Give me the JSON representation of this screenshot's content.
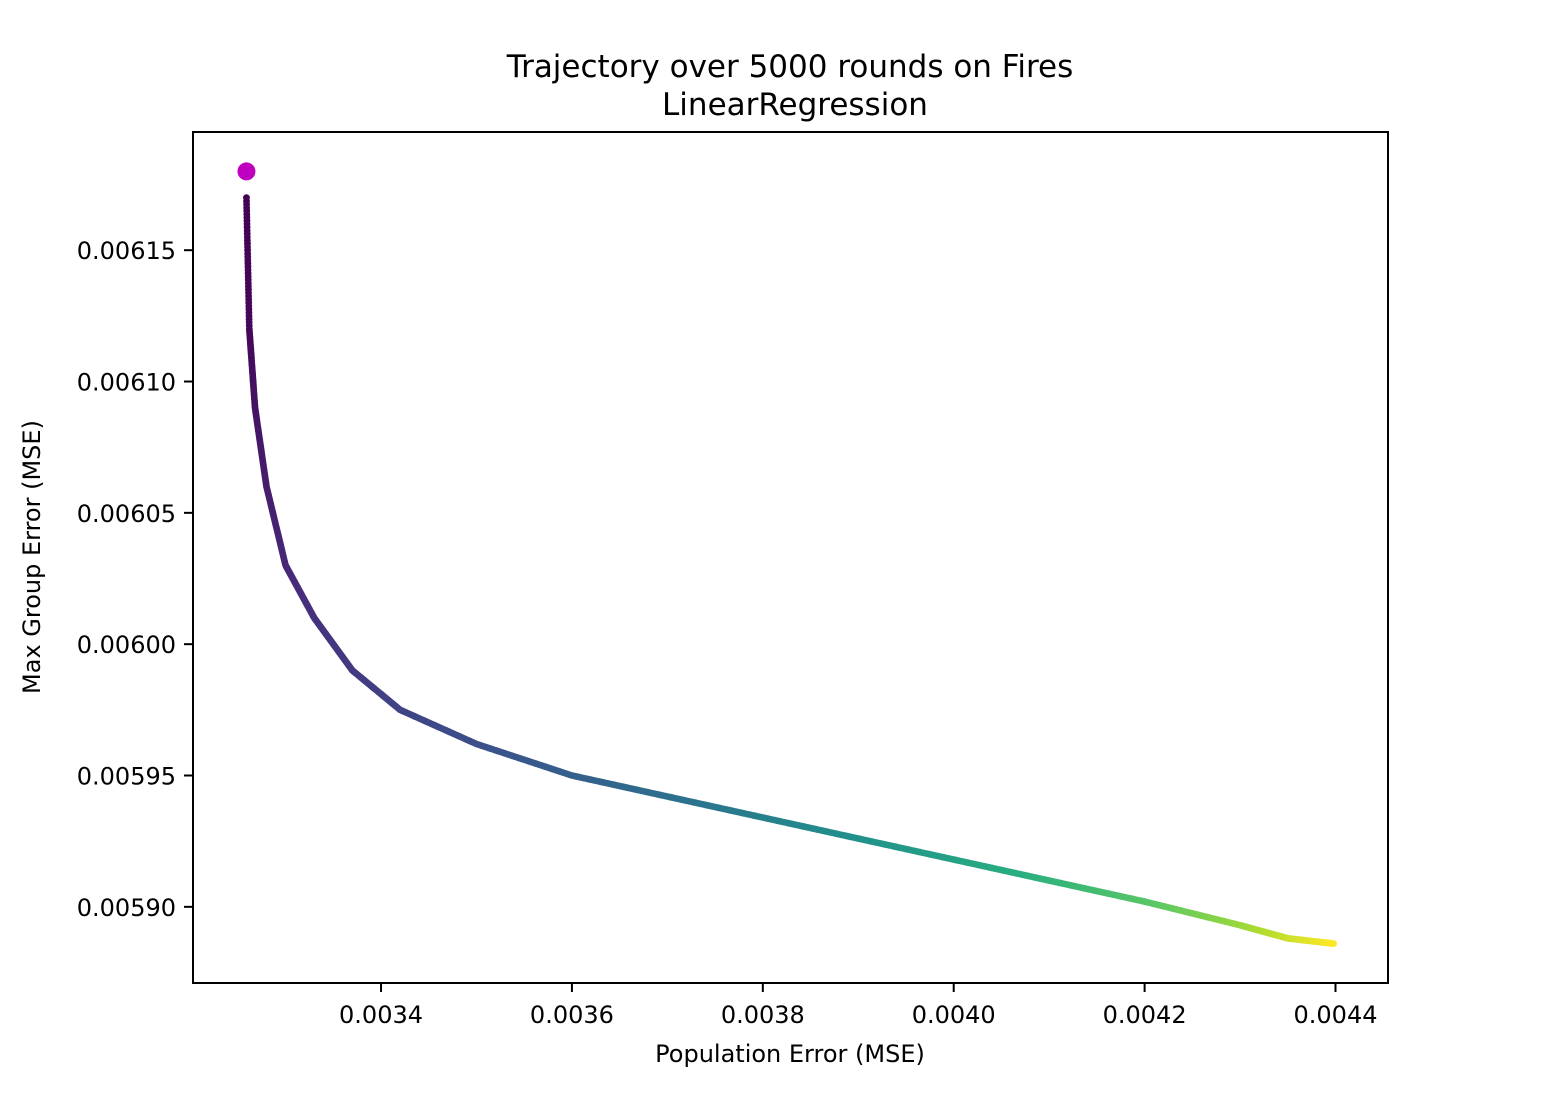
{
  "chart_data": {
    "type": "scatter",
    "title": "Trajectory over 5000 rounds on Fires",
    "subtitle": "LinearRegression",
    "xlabel": "Population Error (MSE)",
    "ylabel": "Max Group Error (MSE)",
    "xlim": [
      0.003203,
      0.004455
    ],
    "ylim": [
      0.005871,
      0.006195
    ],
    "xticks": [
      0.0034,
      0.0036,
      0.0038,
      0.004,
      0.0042,
      0.0044
    ],
    "xtick_labels": [
      "0.0034",
      "0.0036",
      "0.0038",
      "0.0040",
      "0.0042",
      "0.0044"
    ],
    "yticks": [
      0.0059,
      0.00595,
      0.006,
      0.00605,
      0.0061,
      0.00615
    ],
    "ytick_labels": [
      "0.00590",
      "0.00595",
      "0.00600",
      "0.00605",
      "0.00610",
      "0.00615"
    ],
    "grid": false,
    "colormap": [
      "#440154",
      "#472d7b",
      "#3b528b",
      "#2c728e",
      "#21918c",
      "#28ae80",
      "#5ec962",
      "#addc30",
      "#fde725"
    ],
    "start_marker": {
      "x": 0.003259,
      "y": 0.00618,
      "color": "#bf00bf"
    },
    "trajectory": {
      "x": [
        0.003259,
        0.003262,
        0.003268,
        0.00328,
        0.0033,
        0.00333,
        0.00337,
        0.00342,
        0.0035,
        0.0036,
        0.0037,
        0.0038,
        0.0039,
        0.004,
        0.0041,
        0.0042,
        0.0043,
        0.00435,
        0.004398
      ],
      "y": [
        0.00617,
        0.00612,
        0.00609,
        0.00606,
        0.00603,
        0.00601,
        0.00599,
        0.005975,
        0.005962,
        0.00595,
        0.005942,
        0.005934,
        0.005926,
        0.005918,
        0.00591,
        0.005902,
        0.005893,
        0.005888,
        0.005886
      ],
      "t": [
        0.0,
        0.02,
        0.05,
        0.08,
        0.11,
        0.14,
        0.17,
        0.2,
        0.24,
        0.3,
        0.36,
        0.43,
        0.5,
        0.57,
        0.65,
        0.73,
        0.84,
        0.92,
        1.0
      ]
    }
  }
}
